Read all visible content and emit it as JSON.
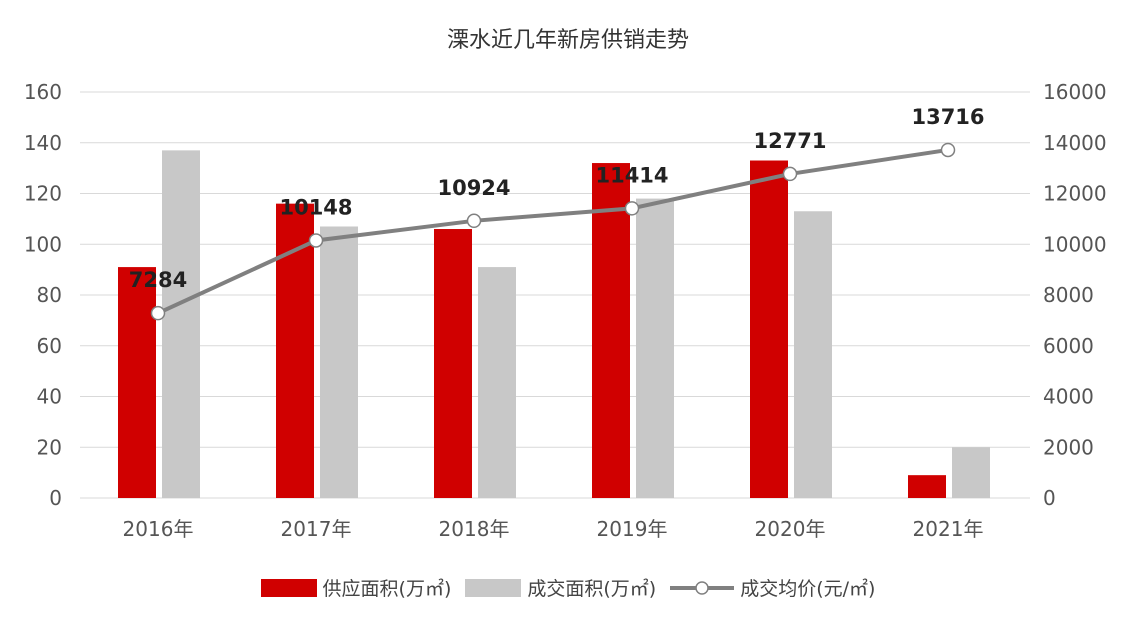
{
  "chart_data": {
    "type": "bar+line",
    "title": "溧水近几年新房供销走势",
    "categories": [
      "2016年",
      "2017年",
      "2018年",
      "2019年",
      "2020年",
      "2021年"
    ],
    "series": [
      {
        "name": "供应面积(万㎡)",
        "type": "bar",
        "axis": "left",
        "color": "#d00000",
        "values": [
          91,
          116,
          106,
          132,
          133,
          9
        ]
      },
      {
        "name": "成交面积(万㎡)",
        "type": "bar",
        "axis": "left",
        "color": "#c8c8c8",
        "values": [
          137,
          107,
          91,
          118,
          113,
          20
        ]
      },
      {
        "name": "成交均价(元/㎡)",
        "type": "line",
        "axis": "right",
        "color": "#808080",
        "values": [
          7284,
          10148,
          10924,
          11414,
          12771,
          13716
        ],
        "labels": [
          "7284",
          "10148",
          "10924",
          "11414",
          "12771",
          "13716"
        ]
      }
    ],
    "ylim": [
      0,
      160
    ],
    "yticks": [
      "0",
      "20",
      "40",
      "60",
      "80",
      "100",
      "120",
      "140",
      "160"
    ],
    "y2lim": [
      0,
      16000
    ],
    "y2ticks": [
      "0",
      "2000",
      "4000",
      "6000",
      "8000",
      "10000",
      "12000",
      "14000",
      "16000"
    ],
    "grid": true,
    "legend": "bottom"
  }
}
